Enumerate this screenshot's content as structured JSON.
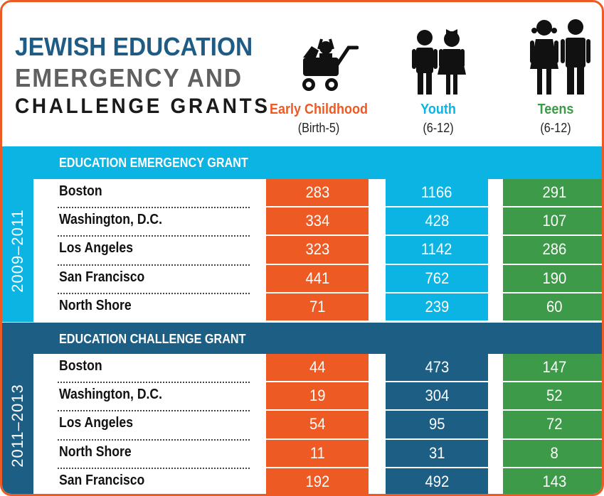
{
  "title": {
    "line1": "JEWISH EDUCATION",
    "line2": "EMERGENCY AND",
    "line3": "CHALLENGE GRANTS"
  },
  "columns": [
    {
      "name": "Early Childhood",
      "sub": "(Birth-5)",
      "color": "#EE5A24",
      "icon": "stroller-icon"
    },
    {
      "name": "Youth",
      "sub": "(6-12)",
      "color": "#0BB4E2",
      "icon": "children-icon"
    },
    {
      "name": "Teens",
      "sub": "(6-12)",
      "color": "#3D9A48",
      "icon": "teens-icon"
    }
  ],
  "colors": {
    "frame": "#EE5A24",
    "emergency_band": "#0BB4E2",
    "challenge_band": "#1D5F84",
    "early_childhood": "#EE5A24",
    "youth_emergency": "#0BB4E2",
    "youth_challenge": "#1D5F84",
    "teens": "#3D9A48"
  },
  "chart_data": {
    "type": "table",
    "title": "JEWISH EDUCATION EMERGENCY AND CHALLENGE GRANTS",
    "column_headers": [
      "Early Childhood (Birth-5)",
      "Youth (6-12)",
      "Teens (6-12)"
    ],
    "sections": [
      {
        "name": "EDUCATION EMERGENCY GRANT",
        "period": "2009–2011",
        "rows": [
          {
            "city": "Boston",
            "values": [
              283,
              1166,
              291
            ]
          },
          {
            "city": "Washington, D.C.",
            "values": [
              334,
              428,
              107
            ]
          },
          {
            "city": "Los Angeles",
            "values": [
              323,
              1142,
              286
            ]
          },
          {
            "city": "San Francisco",
            "values": [
              441,
              762,
              190
            ]
          },
          {
            "city": "North Shore",
            "values": [
              71,
              239,
              60
            ]
          }
        ]
      },
      {
        "name": "EDUCATION CHALLENGE GRANT",
        "period": "2011–2013",
        "rows": [
          {
            "city": "Boston",
            "values": [
              44,
              473,
              147
            ]
          },
          {
            "city": "Washington, D.C.",
            "values": [
              19,
              304,
              52
            ]
          },
          {
            "city": "Los Angeles",
            "values": [
              54,
              95,
              72
            ]
          },
          {
            "city": "North Shore",
            "values": [
              11,
              31,
              8
            ]
          },
          {
            "city": "San Francisco",
            "values": [
              192,
              492,
              143
            ]
          }
        ]
      }
    ]
  }
}
